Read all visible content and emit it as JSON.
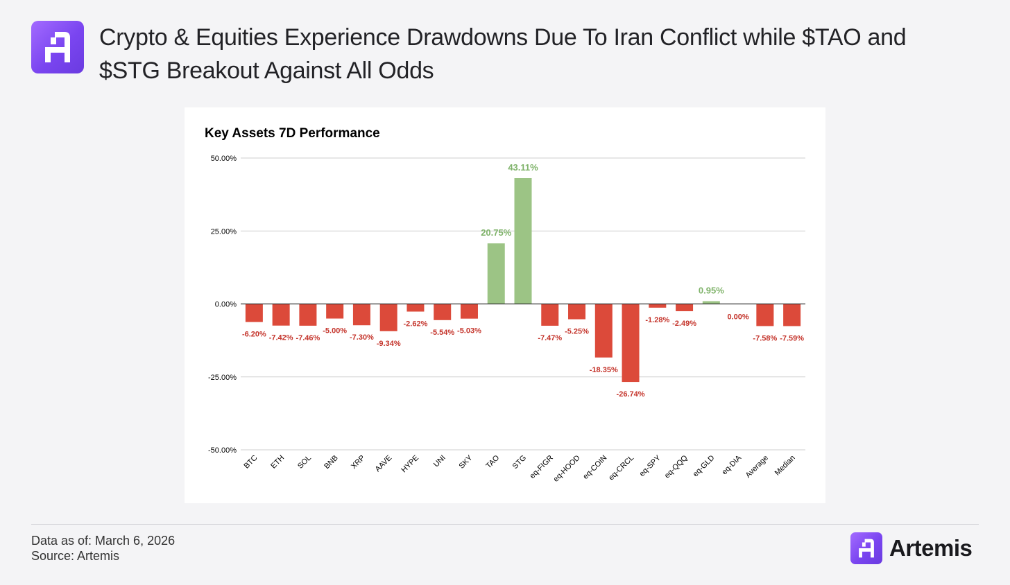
{
  "header": {
    "title": "Crypto & Equities Experience Drawdowns Due To Iran Conflict while $TAO and $STG Breakout Against All Odds"
  },
  "footer": {
    "data_as_of": "Data as of: March 6, 2026",
    "source": "Source: Artemis",
    "brand": "Artemis"
  },
  "colors": {
    "positive": "#9cc485",
    "negative": "#dc4a3a",
    "positive_label": "#7fb36a",
    "negative_label": "#c4332a",
    "brand": "#7a45f0"
  },
  "chart_data": {
    "type": "bar",
    "title": "Key Assets 7D Performance",
    "xlabel": "",
    "ylabel": "",
    "ylim": [
      -50,
      50
    ],
    "yticks": [
      50,
      25,
      0,
      -25,
      -50
    ],
    "ytick_labels": [
      "50.00%",
      "25.00%",
      "0.00%",
      "-25.00%",
      "-50.00%"
    ],
    "categories": [
      "BTC",
      "ETH",
      "SOL",
      "BNB",
      "XRP",
      "AAVE",
      "HYPE",
      "UNI",
      "SKY",
      "TAO",
      "STG",
      "eq-FIGR",
      "eq-HOOD",
      "eq-COIN",
      "eq-CRCL",
      "eq-SPY",
      "eq-QQQ",
      "eq-GLD",
      "eq-DIA",
      "Average",
      "Median"
    ],
    "values": [
      -6.2,
      -7.42,
      -7.46,
      -5.0,
      -7.3,
      -9.34,
      -2.62,
      -5.54,
      -5.03,
      20.75,
      43.11,
      -7.47,
      -5.25,
      -18.35,
      -26.74,
      -1.28,
      -2.49,
      0.95,
      0.0,
      -7.58,
      -7.59
    ],
    "data_labels": [
      "-6.20%",
      "-7.42%",
      "-7.46%",
      "-5.00%",
      "-7.30%",
      "-9.34%",
      "-2.62%",
      "-5.54%",
      "-5.03%",
      "20.75%",
      "43.11%",
      "-7.47%",
      "-5.25%",
      "-18.35%",
      "-26.74%",
      "-1.28%",
      "-2.49%",
      "0.95%",
      "0.00%",
      "-7.58%",
      "-7.59%"
    ],
    "grid": true
  }
}
